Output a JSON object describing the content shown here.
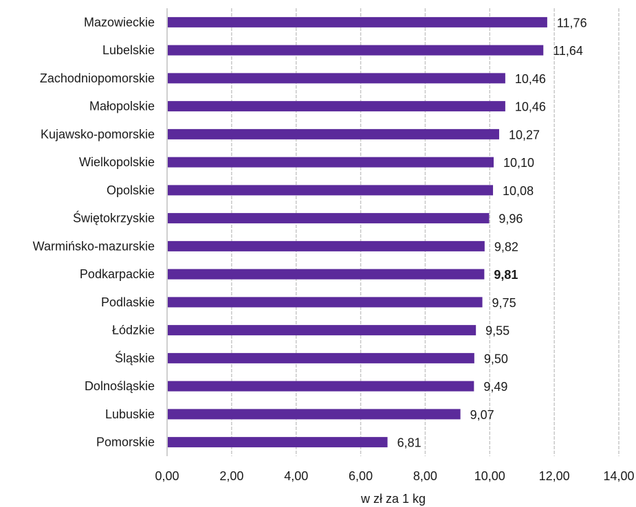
{
  "chart_data": {
    "type": "bar",
    "orientation": "horizontal",
    "categories": [
      "Mazowieckie",
      "Lubelskie",
      "Zachodniopomorskie",
      "Małopolskie",
      "Kujawsko-pomorskie",
      "Wielkopolskie",
      "Opolskie",
      "Świętokrzyskie",
      "Warmińsko-mazurskie",
      "Podkarpackie",
      "Podlaskie",
      "Łódzkie",
      "Śląskie",
      "Dolnośląskie",
      "Lubuskie",
      "Pomorskie"
    ],
    "values": [
      11.76,
      11.64,
      10.46,
      10.46,
      10.27,
      10.1,
      10.08,
      9.96,
      9.82,
      9.81,
      9.75,
      9.55,
      9.5,
      9.49,
      9.07,
      6.81
    ],
    "value_labels": [
      "11,76",
      "11,64",
      "10,46",
      "10,46",
      "10,27",
      "10,10",
      "10,08",
      "9,96",
      "9,82",
      "9,81",
      "9,75",
      "9,55",
      "9,50",
      "9,49",
      "9,07",
      "6,81"
    ],
    "highlighted_category": "Podkarpackie",
    "xlabel": "w zł za 1 kg",
    "xlim": [
      0,
      14
    ],
    "x_ticks": [
      "0,00",
      "2,00",
      "4,00",
      "6,00",
      "8,00",
      "10,00",
      "12,00",
      "14,00"
    ],
    "grid": "vertical",
    "bar_color": "#5b2a9b"
  }
}
